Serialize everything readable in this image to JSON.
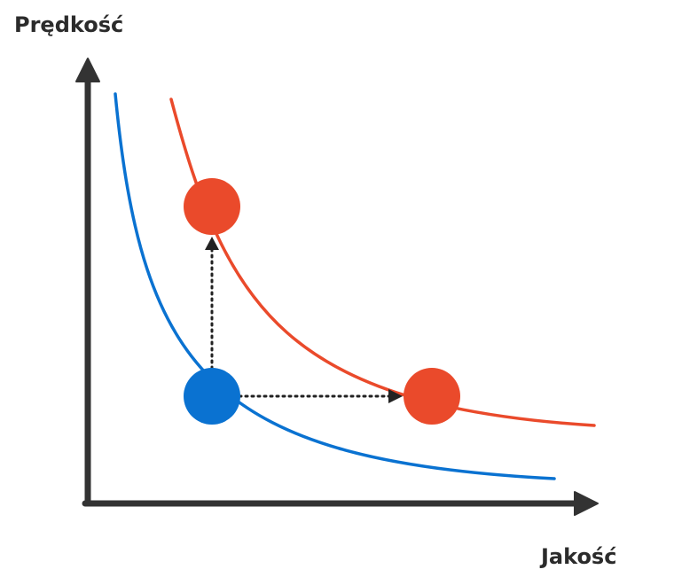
{
  "diagram": {
    "y_axis_label": "Prędkość",
    "x_axis_label": "Jakość",
    "colors": {
      "axis": "#333333",
      "curve_low": "#0a72d1",
      "curve_high": "#ea4a2b",
      "point_start": "#0a72d1",
      "point_target": "#ea4a2b",
      "arrow": "#222222"
    },
    "curves": [
      {
        "name": "",
        "color_key": "curve_low"
      },
      {
        "name": "",
        "color_key": "curve_high"
      }
    ],
    "points": [
      {
        "role": "start",
        "curve": 0,
        "color_key": "point_start"
      },
      {
        "role": "higher-speed",
        "curve": 1,
        "color_key": "point_target"
      },
      {
        "role": "higher-quality",
        "curve": 1,
        "color_key": "point_target"
      }
    ],
    "arrows": [
      {
        "from": "start",
        "to": "higher-speed",
        "style": "dotted"
      },
      {
        "from": "start",
        "to": "higher-quality",
        "style": "dotted"
      }
    ]
  }
}
